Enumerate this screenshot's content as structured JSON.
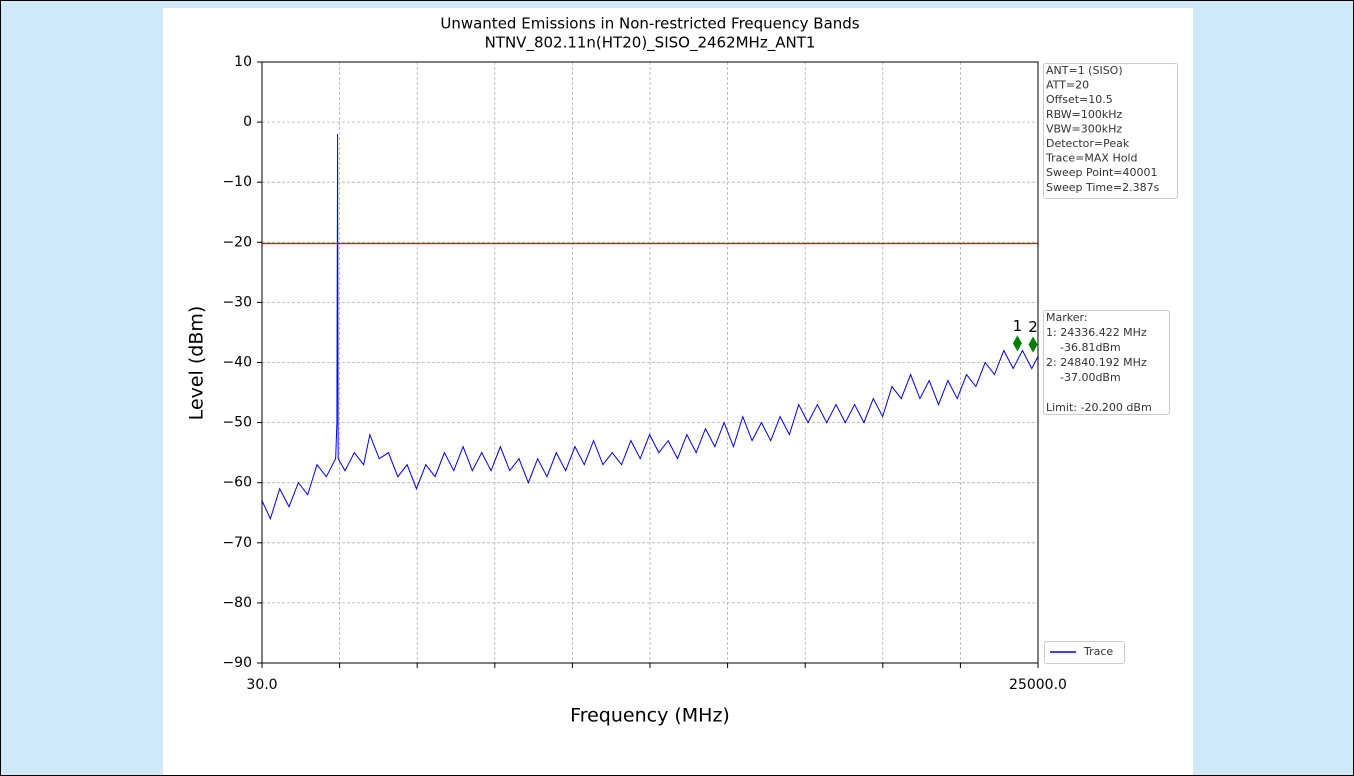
{
  "chart_data": {
    "type": "line",
    "title": "Unwanted Emissions in Non-restricted Frequency Bands",
    "subtitle": "NTNV_802.11n(HT20)_SISO_2462MHz_ANT1",
    "x_label": "Frequency (MHz)",
    "y_label": "Level (dBm)",
    "xlim": [
      30,
      25000
    ],
    "ylim": [
      -90,
      10
    ],
    "xticks": [
      {
        "value": 30,
        "label": "30.0"
      },
      2527,
      5024,
      7521,
      10018,
      12515,
      15012,
      17509,
      20006,
      22503,
      {
        "value": 25000,
        "label": "25000.0"
      }
    ],
    "yticks": [
      {
        "value": -90,
        "label": "−90"
      },
      {
        "value": -80,
        "label": "−80"
      },
      {
        "value": -70,
        "label": "−70"
      },
      {
        "value": -60,
        "label": "−60"
      },
      {
        "value": -50,
        "label": "−50"
      },
      {
        "value": -40,
        "label": "−40"
      },
      {
        "value": -30,
        "label": "−30"
      },
      {
        "value": -20,
        "label": "−20"
      },
      {
        "value": -10,
        "label": "−10"
      },
      0,
      10
    ],
    "grid": true,
    "x": [
      30,
      300,
      600,
      900,
      1200,
      1500,
      1800,
      2100,
      2400,
      2440,
      2462,
      2480,
      2700,
      3000,
      3300,
      3500,
      3800,
      4100,
      4400,
      4700,
      5000,
      5300,
      5600,
      5900,
      6200,
      6500,
      6800,
      7100,
      7400,
      7700,
      8000,
      8300,
      8600,
      8900,
      9200,
      9500,
      9800,
      10100,
      10400,
      10700,
      11000,
      11300,
      11600,
      11900,
      12200,
      12500,
      12800,
      13100,
      13400,
      13700,
      14000,
      14300,
      14600,
      14900,
      15200,
      15500,
      15800,
      16100,
      16400,
      16700,
      17000,
      17300,
      17600,
      17900,
      18200,
      18500,
      18800,
      19100,
      19400,
      19700,
      20000,
      20300,
      20600,
      20900,
      21200,
      21500,
      21800,
      22100,
      22400,
      22700,
      23000,
      23300,
      23600,
      23900,
      24200,
      24500,
      24800,
      25000
    ],
    "series": [
      {
        "name": "Trace",
        "color": "#0000ff",
        "values": [
          -63,
          -66,
          -61,
          -64,
          -60,
          -62,
          -57,
          -59,
          -56,
          -50,
          -2,
          -56,
          -58,
          -55,
          -57,
          -52,
          -56,
          -55,
          -59,
          -57,
          -61,
          -57,
          -59,
          -55,
          -58,
          -54,
          -58,
          -55,
          -58,
          -54,
          -58,
          -56,
          -60,
          -56,
          -59,
          -55,
          -58,
          -54,
          -57,
          -53,
          -57,
          -55,
          -57,
          -53,
          -56,
          -52,
          -55,
          -53,
          -56,
          -52,
          -55,
          -51,
          -54,
          -50,
          -54,
          -49,
          -53,
          -50,
          -53,
          -49,
          -52,
          -47,
          -50,
          -47,
          -50,
          -47,
          -50,
          -47,
          -50,
          -46,
          -49,
          -44,
          -46,
          -42,
          -46,
          -43,
          -47,
          -43,
          -46,
          -42,
          -44,
          -40,
          -42,
          -38,
          -41,
          -38,
          -41,
          -39
        ]
      }
    ],
    "limit": -20.2,
    "limit_color": "#ff0000",
    "markers": [
      {
        "label": "1",
        "x": 24336.422,
        "value": -36.81
      },
      {
        "label": "2",
        "x": 24840.192,
        "value": -37.0
      }
    ],
    "marker_color": "#008000",
    "settings_box": [
      "ANT=1 (SISO)",
      "ATT=20",
      "Offset=10.5",
      "RBW=100kHz",
      "VBW=300kHz",
      "Detector=Peak",
      "Trace=MAX Hold",
      "Sweep Point=40001",
      "Sweep Time=2.387s"
    ],
    "marker_box": [
      "Marker:",
      "1: 24336.422 MHz",
      "    -36.81dBm",
      "2: 24840.192 MHz",
      "    -37.00dBm",
      "Limit: -20.200 dBm"
    ]
  }
}
